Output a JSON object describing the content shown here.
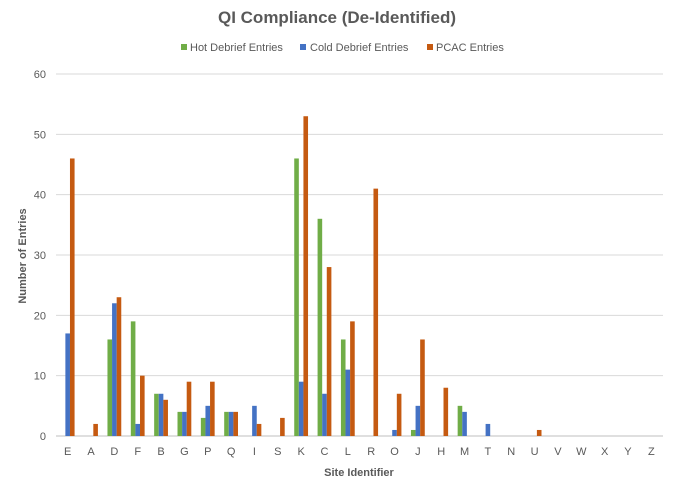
{
  "chart_data": {
    "type": "bar",
    "title": "QI Compliance (De-Identified)",
    "xlabel": "Site Identifier",
    "ylabel": "Number of Entries",
    "ylim": [
      0,
      60
    ],
    "yticks": [
      0,
      10,
      20,
      30,
      40,
      50,
      60
    ],
    "grid": true,
    "legend_position": "top",
    "categories": [
      "E",
      "A",
      "D",
      "F",
      "B",
      "G",
      "P",
      "Q",
      "I",
      "S",
      "K",
      "C",
      "L",
      "R",
      "O",
      "J",
      "H",
      "M",
      "T",
      "N",
      "U",
      "V",
      "W",
      "X",
      "Y",
      "Z"
    ],
    "series": [
      {
        "name": "Hot Debrief Entries",
        "color": "#70ad47",
        "values": [
          0,
          0,
          16,
          19,
          7,
          4,
          3,
          4,
          0,
          0,
          46,
          36,
          16,
          0,
          0,
          1,
          0,
          5,
          0,
          0,
          0,
          0,
          0,
          0,
          0,
          0
        ]
      },
      {
        "name": "Cold Debrief Entries",
        "color": "#4472c4",
        "values": [
          17,
          0,
          22,
          2,
          7,
          4,
          5,
          4,
          5,
          0,
          9,
          7,
          11,
          0,
          1,
          5,
          0,
          4,
          2,
          0,
          0,
          0,
          0,
          0,
          0,
          0
        ]
      },
      {
        "name": "PCAC Entries",
        "color": "#c55a11",
        "values": [
          46,
          2,
          23,
          10,
          6,
          9,
          9,
          4,
          2,
          3,
          53,
          28,
          19,
          41,
          7,
          16,
          8,
          0,
          0,
          0,
          1,
          0,
          0,
          0,
          0,
          0
        ]
      }
    ]
  }
}
